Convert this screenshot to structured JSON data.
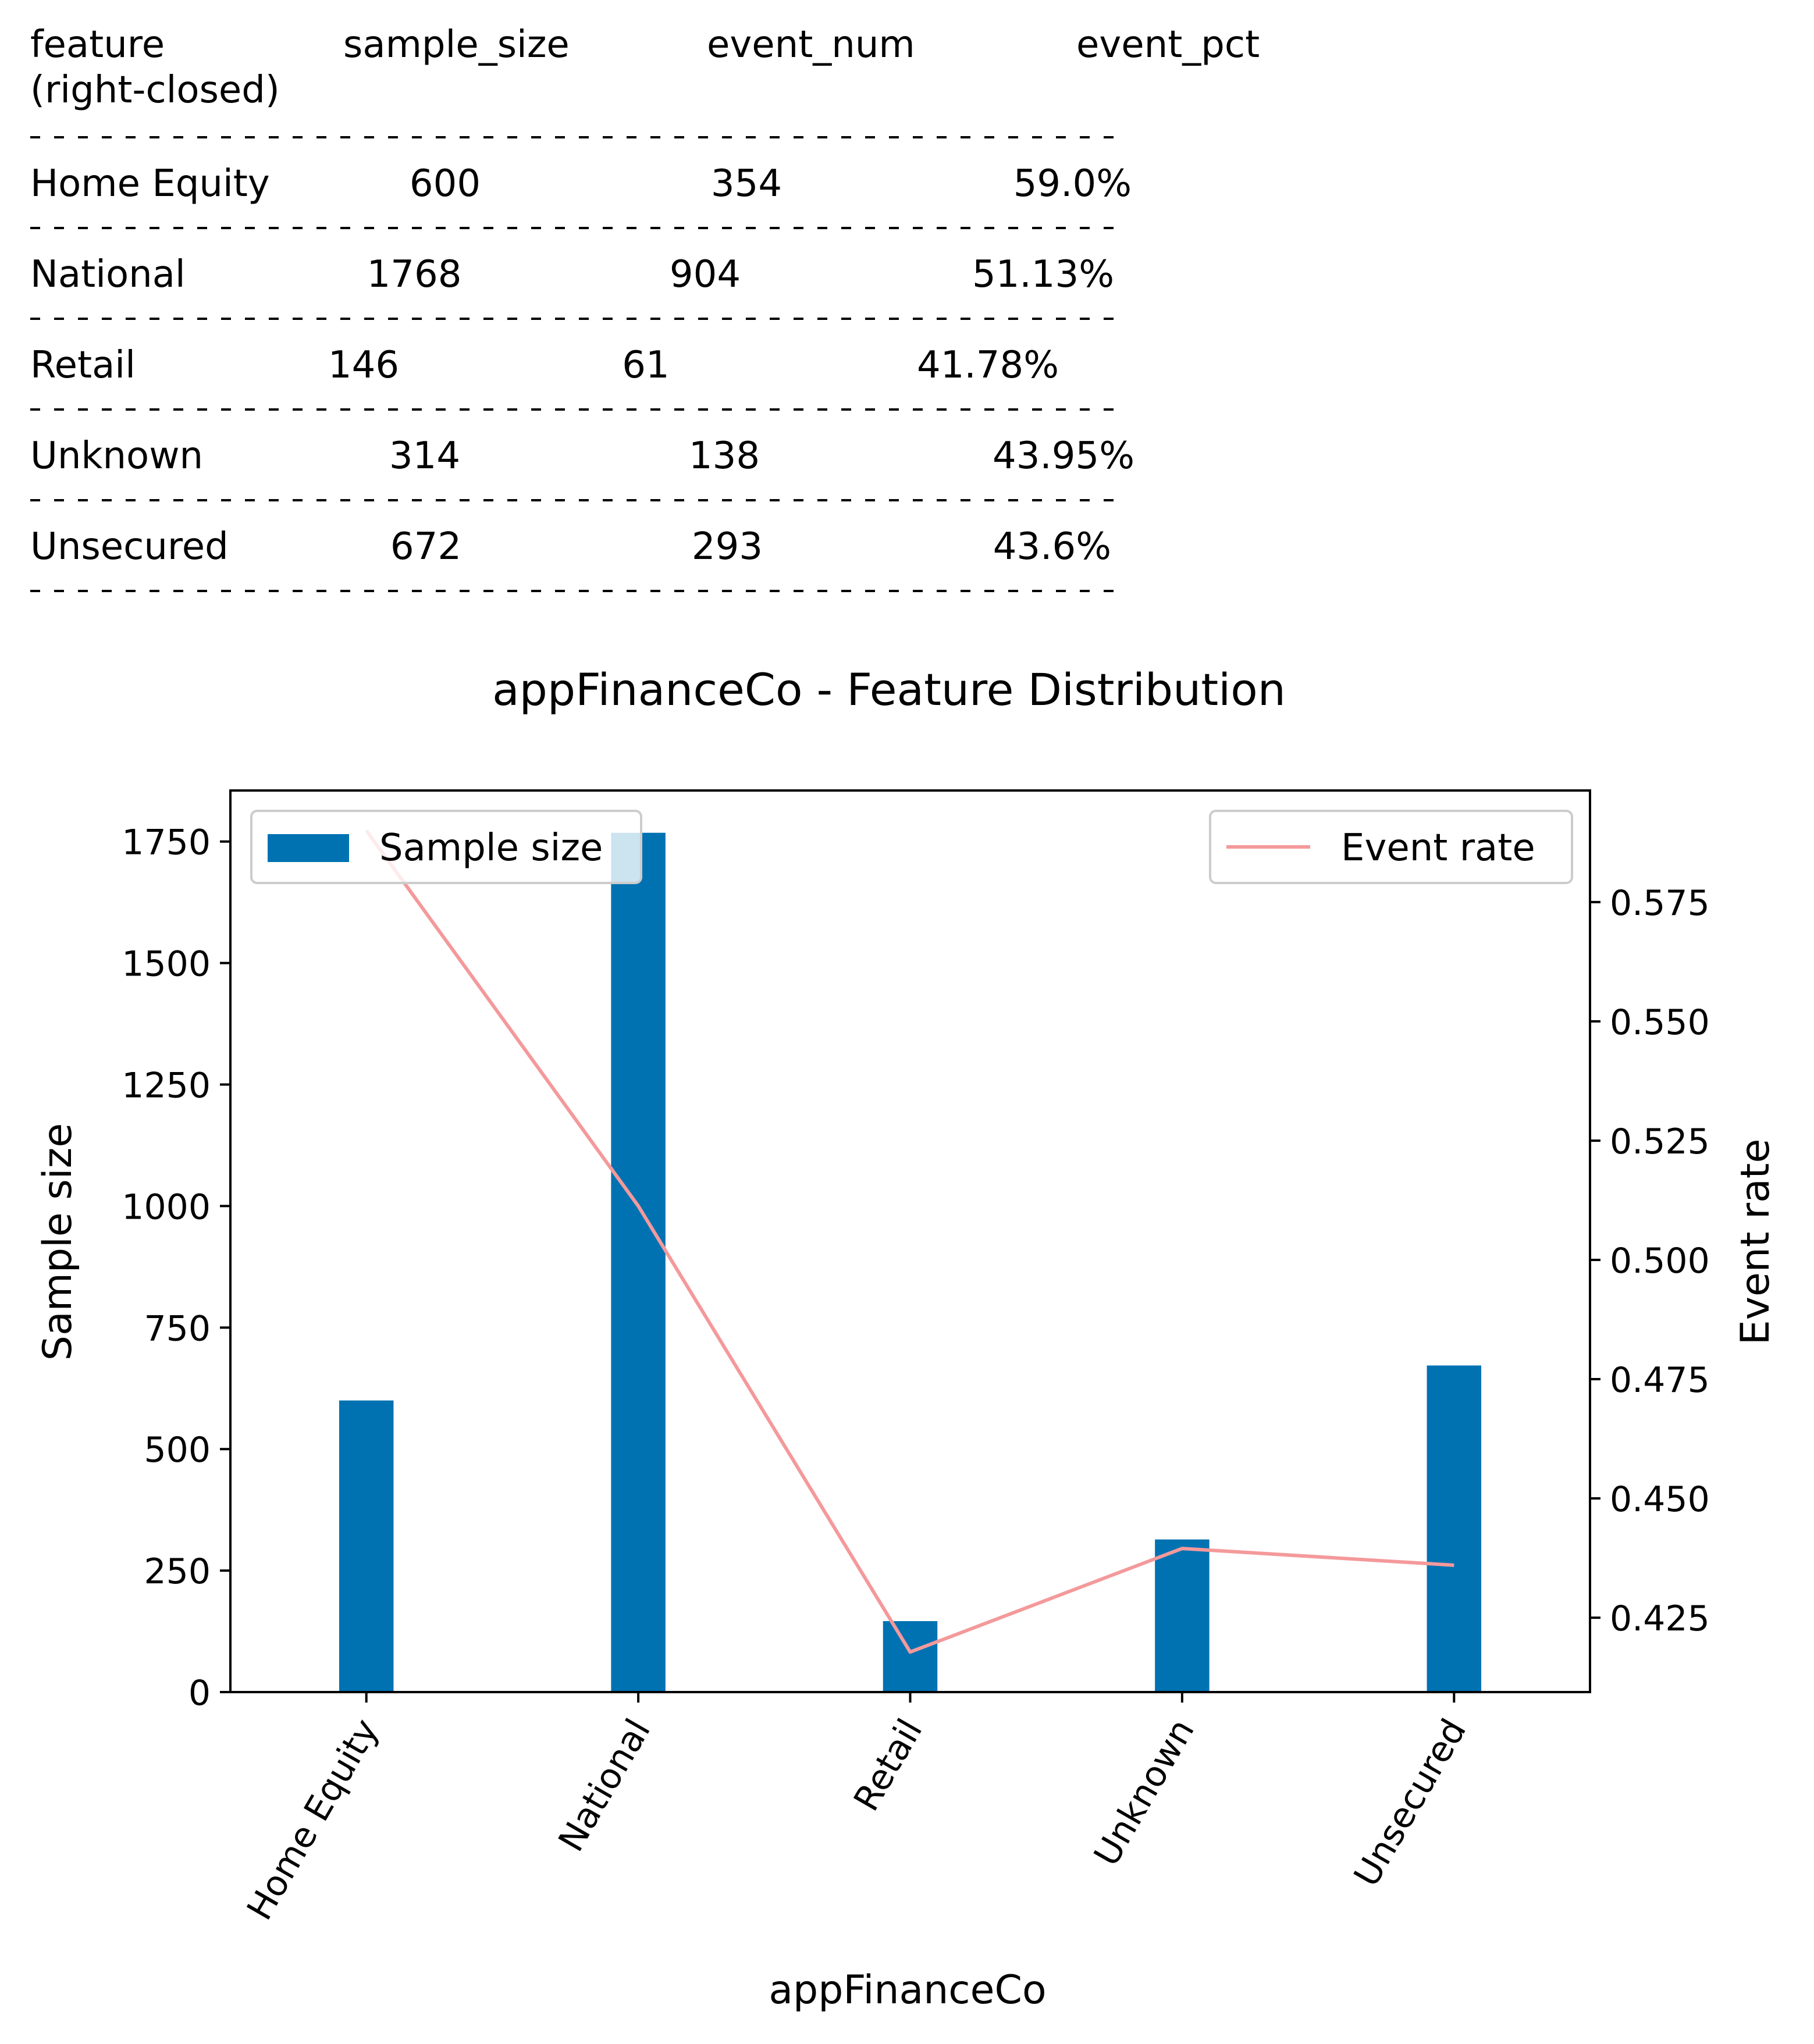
{
  "table": {
    "headers": [
      "feature\n(right-closed)",
      "sample_size",
      "event_num",
      "event_pct"
    ],
    "rows": [
      [
        "Home Equity",
        "600",
        "354",
        "59.0%"
      ],
      [
        "National",
        "1768",
        "904",
        "51.13%"
      ],
      [
        "Retail",
        "146",
        "61",
        "41.78%"
      ],
      [
        "Unknown",
        "314",
        "138",
        "43.95%"
      ],
      [
        "Unsecured",
        "672",
        "293",
        "43.6%"
      ]
    ]
  },
  "chart_data": {
    "type": "bar",
    "title": "appFinanceCo - Feature Distribution",
    "xlabel": "appFinanceCo",
    "ylabel": "Sample size",
    "y2label": "Event rate",
    "categories": [
      "Home Equity",
      "National",
      "Retail",
      "Unknown",
      "Unsecured"
    ],
    "series": [
      {
        "name": "Sample size",
        "type": "bar",
        "axis": "left",
        "color": "#0072b2",
        "values": [
          600,
          1768,
          146,
          314,
          672
        ]
      },
      {
        "name": "Event rate",
        "type": "line",
        "axis": "right",
        "color": "#f4999b",
        "values": [
          0.59,
          0.5113,
          0.4178,
          0.4395,
          0.436
        ]
      }
    ],
    "ylim": [
      0,
      1855
    ],
    "y2lim": [
      0.4094,
      0.5984
    ],
    "yticks": [
      0,
      250,
      500,
      750,
      1000,
      1250,
      1500,
      1750
    ],
    "y2ticks": [
      0.425,
      0.45,
      0.475,
      0.5,
      0.525,
      0.55,
      0.575
    ],
    "legend_left": "upper-left",
    "legend_right": "upper-right",
    "grid": false
  }
}
